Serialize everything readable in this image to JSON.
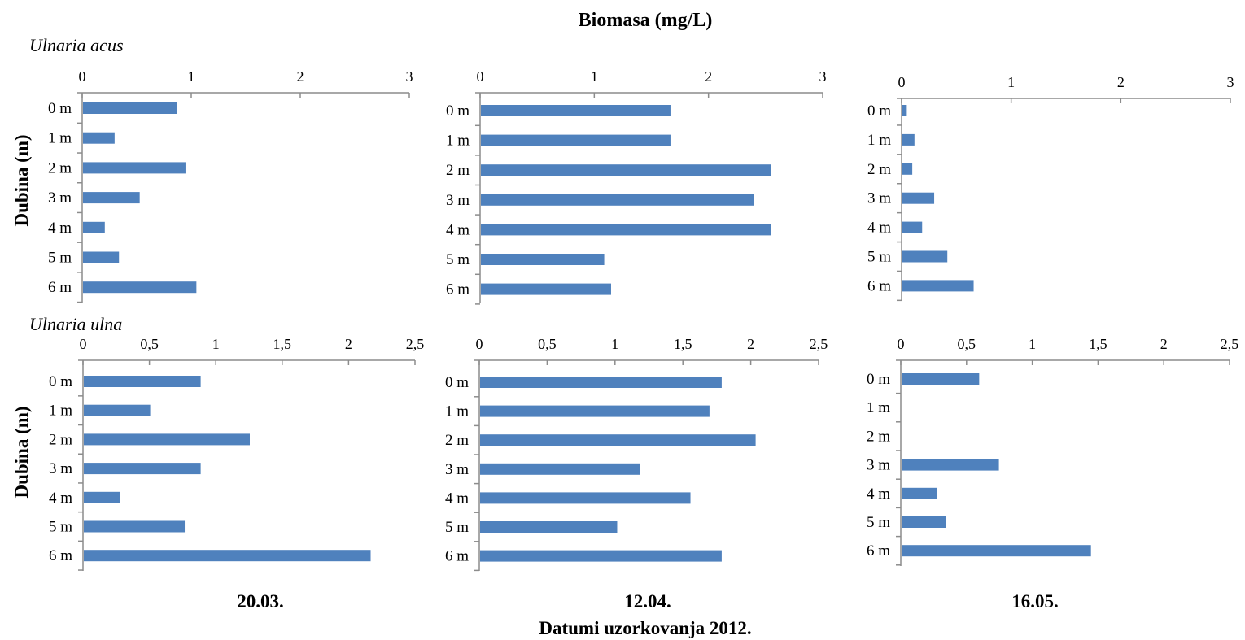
{
  "title": "Biomasa (mg/L)",
  "y_axis_label": "Dubina (m)",
  "x_axis_label": "Datumi uzorkovanja 2012.",
  "species": [
    "Ulnaria acus",
    "Ulnaria ulna"
  ],
  "dates": [
    "20.03.",
    "12.04.",
    "16.05."
  ],
  "colors": {
    "bar": "#4f81bd",
    "axis": "#8c8c8c"
  },
  "chart_data": [
    {
      "type": "bar",
      "orientation": "horizontal",
      "species": "Ulnaria acus",
      "date": "20.03.",
      "categories": [
        "0 m",
        "1 m",
        "2 m",
        "3 m",
        "4 m",
        "5 m",
        "6 m"
      ],
      "values": [
        0.86,
        0.29,
        0.94,
        0.52,
        0.2,
        0.33,
        1.04
      ],
      "xlim": [
        0,
        3
      ],
      "ticks": [
        "0",
        "1",
        "2",
        "3"
      ],
      "axis_position": "top"
    },
    {
      "type": "bar",
      "orientation": "horizontal",
      "species": "Ulnaria acus",
      "date": "12.04.",
      "categories": [
        "0 m",
        "1 m",
        "2 m",
        "3 m",
        "4 m",
        "5 m",
        "6 m"
      ],
      "values": [
        1.66,
        1.66,
        2.54,
        2.39,
        2.54,
        1.08,
        1.14
      ],
      "xlim": [
        0,
        3
      ],
      "ticks": [
        "0",
        "1",
        "2",
        "3"
      ],
      "axis_position": "top"
    },
    {
      "type": "bar",
      "orientation": "horizontal",
      "species": "Ulnaria acus",
      "date": "16.05.",
      "categories": [
        "0 m",
        "1 m",
        "2 m",
        "3 m",
        "4 m",
        "5 m",
        "6 m"
      ],
      "values": [
        0.04,
        0.11,
        0.09,
        0.29,
        0.18,
        0.41,
        0.65
      ],
      "xlim": [
        0,
        3
      ],
      "ticks": [
        "0",
        "1",
        "2",
        "3"
      ],
      "axis_position": "top"
    },
    {
      "type": "bar",
      "orientation": "horizontal",
      "species": "Ulnaria ulna",
      "date": "20.03.",
      "categories": [
        "0 m",
        "1 m",
        "2 m",
        "3 m",
        "4 m",
        "5 m",
        "6 m"
      ],
      "values": [
        0.88,
        0.5,
        1.25,
        0.88,
        0.27,
        0.76,
        2.16
      ],
      "xlim": [
        0,
        2.5
      ],
      "ticks": [
        "0",
        "0,5",
        "1",
        "1,5",
        "2",
        "2,5"
      ],
      "axis_position": "top"
    },
    {
      "type": "bar",
      "orientation": "horizontal",
      "species": "Ulnaria ulna",
      "date": "12.04.",
      "categories": [
        "0 m",
        "1 m",
        "2 m",
        "3 m",
        "4 m",
        "5 m",
        "6 m"
      ],
      "values": [
        1.78,
        1.69,
        2.03,
        1.18,
        1.55,
        1.01,
        1.78
      ],
      "xlim": [
        0,
        2.5
      ],
      "ticks": [
        "0",
        "0,5",
        "1",
        "1,5",
        "2",
        "2,5"
      ],
      "axis_position": "top"
    },
    {
      "type": "bar",
      "orientation": "horizontal",
      "species": "Ulnaria ulna",
      "date": "16.05.",
      "categories": [
        "0 m",
        "1 m",
        "2 m",
        "3 m",
        "4 m",
        "5 m",
        "6 m"
      ],
      "values": [
        0.59,
        0,
        0,
        0.74,
        0.27,
        0.34,
        1.44
      ],
      "xlim": [
        0,
        2.5
      ],
      "ticks": [
        "0",
        "0,5",
        "1",
        "1,5",
        "2",
        "2,5"
      ],
      "axis_position": "top"
    }
  ]
}
